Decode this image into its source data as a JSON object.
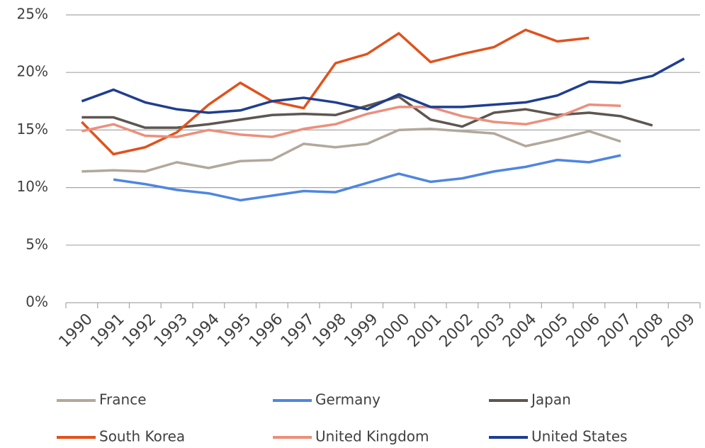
{
  "chart_data": {
    "type": "line",
    "categories": [
      "1990",
      "1991",
      "1992",
      "1993",
      "1994",
      "1995",
      "1996",
      "1997",
      "1998",
      "1999",
      "2000",
      "2001",
      "2002",
      "2003",
      "2004",
      "2005",
      "2006",
      "2007",
      "2008",
      "2009"
    ],
    "ylim": [
      0,
      25
    ],
    "yticks": [
      {
        "value": 0,
        "label": "0%"
      },
      {
        "value": 5,
        "label": "5%"
      },
      {
        "value": 10,
        "label": "10%"
      },
      {
        "value": 15,
        "label": "15%"
      },
      {
        "value": 20,
        "label": "20%"
      },
      {
        "value": 25,
        "label": "25%"
      }
    ],
    "grid": true,
    "legend": "bottom",
    "series": [
      {
        "name": "France",
        "color": "#b2a89b",
        "values": [
          11.4,
          11.5,
          11.4,
          12.2,
          11.7,
          12.3,
          12.4,
          13.8,
          13.5,
          13.8,
          15.0,
          15.1,
          14.9,
          14.7,
          13.6,
          14.2,
          14.9,
          14.0,
          null,
          null
        ]
      },
      {
        "name": "Germany",
        "color": "#4f86e0",
        "values": [
          null,
          10.7,
          10.3,
          9.8,
          9.5,
          8.9,
          9.3,
          9.7,
          9.6,
          10.4,
          11.2,
          10.5,
          10.8,
          11.4,
          11.8,
          12.4,
          12.2,
          12.8,
          null,
          null
        ]
      },
      {
        "name": "Japan",
        "color": "#5e5650",
        "values": [
          16.1,
          16.1,
          15.2,
          15.2,
          15.5,
          15.9,
          16.3,
          16.4,
          16.3,
          17.1,
          17.9,
          15.9,
          15.3,
          16.5,
          16.8,
          16.3,
          16.5,
          16.2,
          15.4,
          null
        ]
      },
      {
        "name": "South Korea",
        "color": "#e0521c",
        "values": [
          15.7,
          12.9,
          13.5,
          14.8,
          17.2,
          19.1,
          17.5,
          16.9,
          20.8,
          21.6,
          23.4,
          20.9,
          21.6,
          22.2,
          23.7,
          22.7,
          23.0,
          null,
          null,
          null
        ]
      },
      {
        "name": "United Kingdom",
        "color": "#ec8f7c",
        "values": [
          14.9,
          15.5,
          14.5,
          14.4,
          15.0,
          14.6,
          14.4,
          15.1,
          15.5,
          16.4,
          17.0,
          17.0,
          16.2,
          15.7,
          15.5,
          16.1,
          17.2,
          17.1,
          null,
          null
        ]
      },
      {
        "name": "United States",
        "color": "#1f3e8f",
        "values": [
          17.5,
          18.5,
          17.4,
          16.8,
          16.5,
          16.7,
          17.5,
          17.8,
          17.4,
          16.8,
          18.1,
          17.0,
          17.0,
          17.2,
          17.4,
          18.0,
          19.2,
          19.1,
          19.7,
          21.2
        ]
      }
    ]
  }
}
